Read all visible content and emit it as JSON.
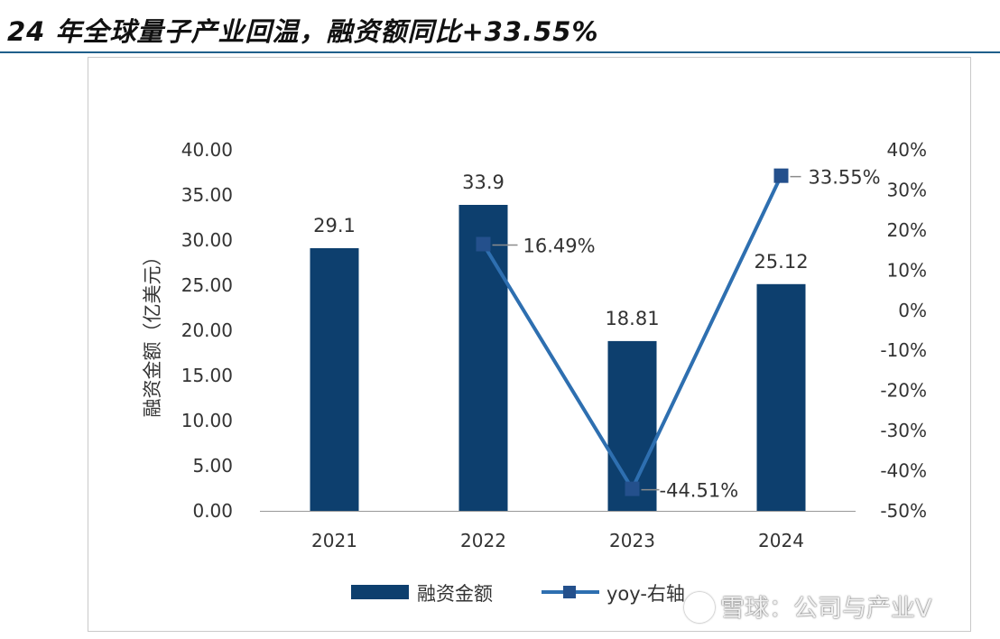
{
  "title": "24 年全球量子产业回温，融资额同比+33.55%",
  "watermark": "雪球：公司与产业V",
  "colors": {
    "bar": "#0d3f6e",
    "line": "#2e6fb0",
    "header_rule": "#1f5f8b",
    "text": "#333333"
  },
  "chart_data": {
    "type": "bar",
    "categories": [
      "2021",
      "2022",
      "2023",
      "2024"
    ],
    "series": [
      {
        "name": "融资金额",
        "type": "bar",
        "axis": "left",
        "values": [
          29.1,
          33.9,
          18.81,
          25.12
        ],
        "labels": [
          "29.1",
          "33.9",
          "18.81",
          "25.12"
        ]
      },
      {
        "name": "yoy-右轴",
        "type": "line",
        "axis": "right",
        "values": [
          null,
          16.49,
          -44.51,
          33.55
        ],
        "labels": [
          "",
          "16.49%",
          "-44.51%",
          "33.55%"
        ]
      }
    ],
    "ylabel": "融资金额（亿美元）",
    "ylim": [
      0,
      40
    ],
    "yticks": [
      "0.00",
      "5.00",
      "10.00",
      "15.00",
      "20.00",
      "25.00",
      "30.00",
      "35.00",
      "40.00"
    ],
    "y2lim": [
      -50,
      40
    ],
    "y2ticks": [
      "-50%",
      "-40%",
      "-30%",
      "-20%",
      "-10%",
      "0%",
      "10%",
      "20%",
      "30%",
      "40%"
    ],
    "legend": [
      "融资金额",
      "yoy-右轴"
    ],
    "legend_position": "bottom",
    "grid": false
  }
}
